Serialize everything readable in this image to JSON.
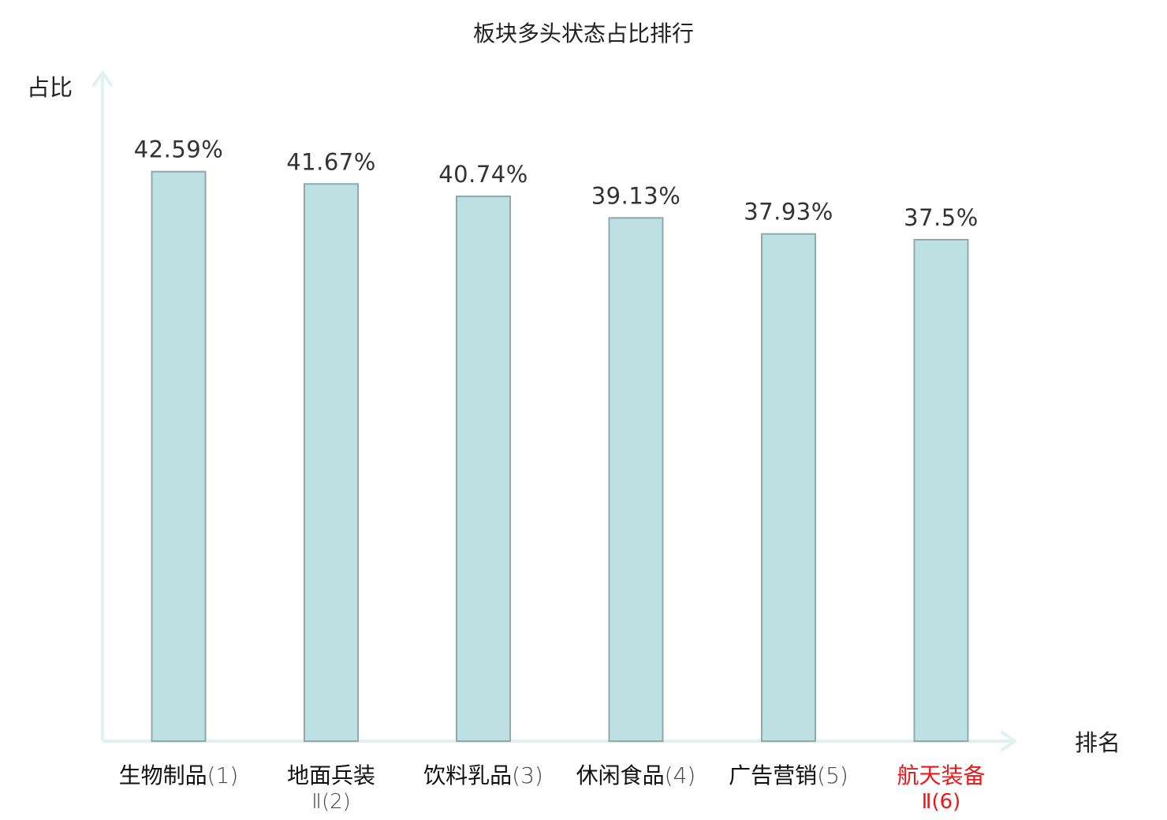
{
  "chart_data": {
    "type": "bar",
    "title": "板块多头状态占比排行",
    "xlabel": "排名",
    "ylabel": "占比",
    "ylim": [
      0,
      50
    ],
    "categories": [
      {
        "name": "生物制品",
        "rank": "(1)"
      },
      {
        "name": "地面兵装",
        "rank": "Ⅱ(2)"
      },
      {
        "name": "饮料乳品",
        "rank": "(3)"
      },
      {
        "name": "休闲食品",
        "rank": "(4)"
      },
      {
        "name": "广告营销",
        "rank": "(5)"
      },
      {
        "name": "航天装备",
        "rank": "Ⅱ(6)"
      }
    ],
    "values": [
      42.59,
      41.67,
      40.74,
      39.13,
      37.93,
      37.5
    ],
    "value_labels": [
      "42.59%",
      "41.67%",
      "40.74%",
      "39.13%",
      "37.93%",
      "37.5%"
    ],
    "highlight_index": 5,
    "grid": false,
    "colors": {
      "bar_fill": "#bde1e3",
      "bar_stroke": "#8fa8aa",
      "axis": "#e0f2ef",
      "highlight": "#e8191a"
    }
  }
}
